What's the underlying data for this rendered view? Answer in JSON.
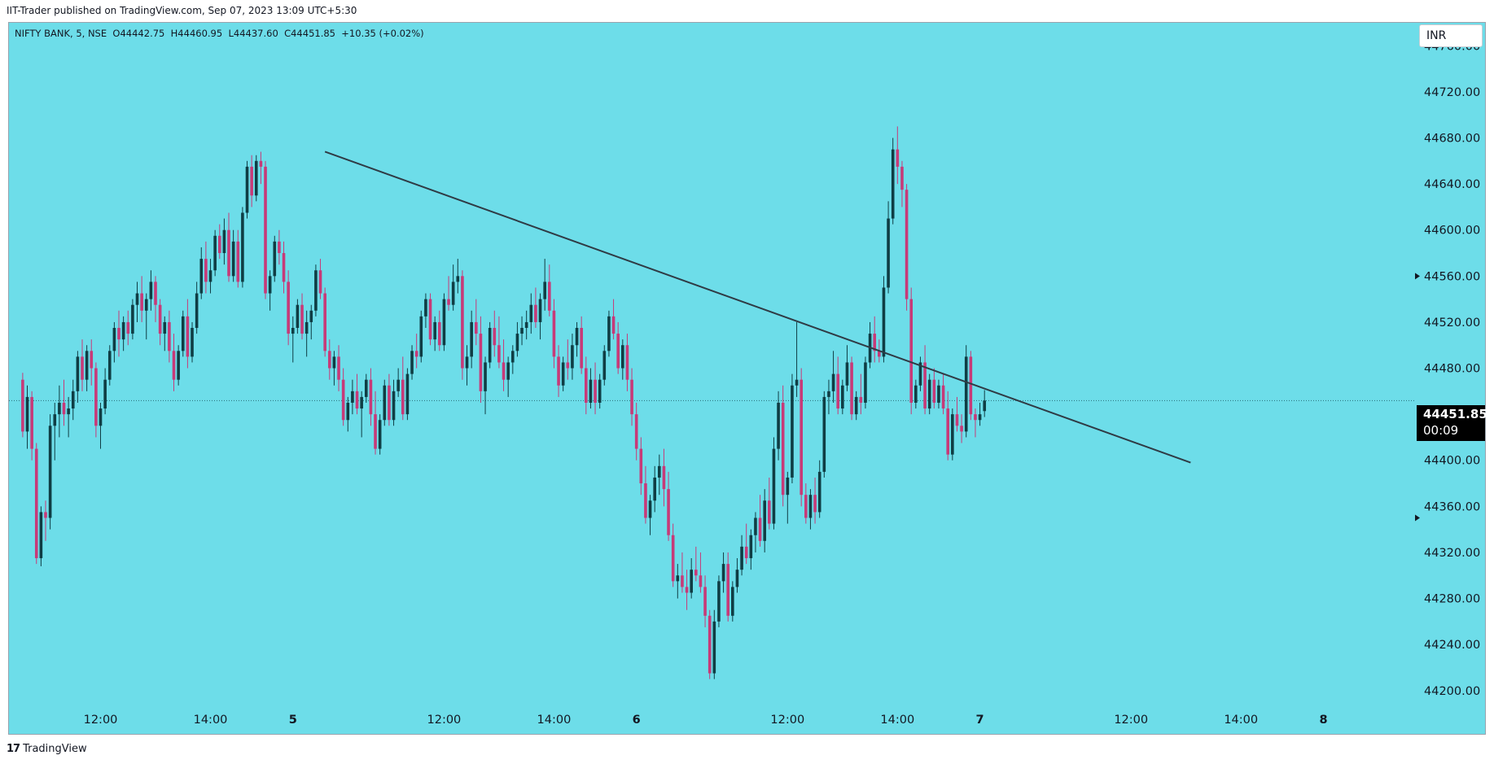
{
  "caption": "IIT-Trader published on TradingView.com, Sep 07, 2023 13:09 UTC+5:30",
  "legend": "NIFTY BANK, 5, NSE  O44442.75  H44460.95  L44437.60  C44451.85  +10.35 (+0.02%)",
  "currency": "INR",
  "last_price": {
    "price": "44451.85",
    "countdown": "00:09",
    "value": 44451.85
  },
  "footer": {
    "logo": "17",
    "brand": "TradingView"
  },
  "colors": {
    "background": "#6ddde9",
    "up": "#0f3d44",
    "down": "#c73a78",
    "trendline": "#2f3b45",
    "tag": "#000000"
  },
  "icons": {
    "price-arrow": "triangle-right",
    "tradingview-logo": "tv-icon"
  },
  "chart_data": {
    "type": "candlestick",
    "symbol": "NIFTY BANK",
    "interval": "5",
    "exchange": "NSE",
    "ohlc_last": {
      "open": 44442.75,
      "high": 44460.95,
      "low": 44437.6,
      "close": 44451.85,
      "change": 10.35,
      "change_pct": "+0.02%"
    },
    "ylim": [
      44185,
      44780
    ],
    "y_ticks": [
      "44760.00",
      "44720.00",
      "44680.00",
      "44640.00",
      "44600.00",
      "44560.00",
      "44520.00",
      "44480.00",
      "44440.00",
      "44400.00",
      "44360.00",
      "44320.00",
      "44280.00",
      "44240.00",
      "44200.00"
    ],
    "x_ticks": [
      {
        "label": "12:00",
        "bold": false,
        "bar": 17
      },
      {
        "label": "14:00",
        "bold": false,
        "bar": 41
      },
      {
        "label": "5",
        "bold": true,
        "bar": 59
      },
      {
        "label": "12:00",
        "bold": false,
        "bar": 92
      },
      {
        "label": "14:00",
        "bold": false,
        "bar": 116
      },
      {
        "label": "6",
        "bold": true,
        "bar": 134
      },
      {
        "label": "12:00",
        "bold": false,
        "bar": 167
      },
      {
        "label": "14:00",
        "bold": false,
        "bar": 191
      },
      {
        "label": "7",
        "bold": true,
        "bar": 209
      },
      {
        "label": "12:00",
        "bold": false,
        "bar": 242
      },
      {
        "label": "14:00",
        "bold": false,
        "bar": 266
      },
      {
        "label": "8",
        "bold": true,
        "bar": 284
      }
    ],
    "x_range_bars": [
      -3,
      304
    ],
    "price_line": 44451.85,
    "trendline": [
      {
        "bar": 66,
        "price": 44668
      },
      {
        "bar": 255,
        "price": 44398
      }
    ],
    "candles": [
      [
        44470,
        44476,
        44420,
        44425
      ],
      [
        44425,
        44465,
        44410,
        44455
      ],
      [
        44455,
        44460,
        44400,
        44410
      ],
      [
        44410,
        44415,
        44310,
        44315
      ],
      [
        44315,
        44360,
        44308,
        44355
      ],
      [
        44355,
        44365,
        44330,
        44350
      ],
      [
        44350,
        44440,
        44340,
        44430
      ],
      [
        44430,
        44450,
        44400,
        44440
      ],
      [
        44440,
        44465,
        44420,
        44450
      ],
      [
        44450,
        44470,
        44430,
        44440
      ],
      [
        44440,
        44455,
        44420,
        44445
      ],
      [
        44445,
        44470,
        44435,
        44460
      ],
      [
        44460,
        44495,
        44450,
        44490
      ],
      [
        44490,
        44505,
        44460,
        44470
      ],
      [
        44470,
        44500,
        44460,
        44495
      ],
      [
        44495,
        44505,
        44465,
        44480
      ],
      [
        44480,
        44485,
        44420,
        44430
      ],
      [
        44430,
        44450,
        44410,
        44445
      ],
      [
        44445,
        44480,
        44440,
        44470
      ],
      [
        44470,
        44500,
        44465,
        44495
      ],
      [
        44495,
        44520,
        44485,
        44515
      ],
      [
        44515,
        44530,
        44490,
        44505
      ],
      [
        44505,
        44525,
        44495,
        44520
      ],
      [
        44520,
        44530,
        44500,
        44510
      ],
      [
        44510,
        44540,
        44505,
        44535
      ],
      [
        44535,
        44555,
        44520,
        44545
      ],
      [
        44545,
        44560,
        44520,
        44530
      ],
      [
        44530,
        44545,
        44505,
        44540
      ],
      [
        44540,
        44565,
        44530,
        44555
      ],
      [
        44555,
        44560,
        44520,
        44535
      ],
      [
        44535,
        44540,
        44500,
        44510
      ],
      [
        44510,
        44525,
        44495,
        44520
      ],
      [
        44520,
        44530,
        44485,
        44495
      ],
      [
        44495,
        44510,
        44460,
        44470
      ],
      [
        44470,
        44500,
        44465,
        44495
      ],
      [
        44495,
        44530,
        44490,
        44525
      ],
      [
        44525,
        44540,
        44480,
        44490
      ],
      [
        44490,
        44520,
        44485,
        44515
      ],
      [
        44515,
        44555,
        44510,
        44545
      ],
      [
        44545,
        44585,
        44540,
        44575
      ],
      [
        44575,
        44590,
        44545,
        44555
      ],
      [
        44555,
        44575,
        44545,
        44565
      ],
      [
        44565,
        44600,
        44560,
        44595
      ],
      [
        44595,
        44605,
        44575,
        44580
      ],
      [
        44580,
        44610,
        44570,
        44600
      ],
      [
        44600,
        44615,
        44555,
        44560
      ],
      [
        44560,
        44600,
        44555,
        44590
      ],
      [
        44590,
        44600,
        44550,
        44555
      ],
      [
        44555,
        44620,
        44550,
        44615
      ],
      [
        44615,
        44660,
        44610,
        44655
      ],
      [
        44655,
        44665,
        44620,
        44630
      ],
      [
        44630,
        44665,
        44625,
        44660
      ],
      [
        44660,
        44668,
        44640,
        44655
      ],
      [
        44655,
        44660,
        44540,
        44545
      ],
      [
        44545,
        44565,
        44530,
        44560
      ],
      [
        44560,
        44595,
        44555,
        44590
      ],
      [
        44590,
        44600,
        44570,
        44580
      ],
      [
        44580,
        44590,
        44545,
        44555
      ],
      [
        44555,
        44565,
        44500,
        44510
      ],
      [
        44510,
        44525,
        44485,
        44515
      ],
      [
        44515,
        44540,
        44510,
        44535
      ],
      [
        44535,
        44545,
        44505,
        44510
      ],
      [
        44510,
        44530,
        44490,
        44520
      ],
      [
        44520,
        44535,
        44505,
        44530
      ],
      [
        44530,
        44570,
        44525,
        44565
      ],
      [
        44565,
        44575,
        44540,
        44545
      ],
      [
        44545,
        44550,
        44490,
        44495
      ],
      [
        44495,
        44505,
        44470,
        44480
      ],
      [
        44480,
        44495,
        44465,
        44490
      ],
      [
        44490,
        44500,
        44460,
        44470
      ],
      [
        44470,
        44480,
        44430,
        44435
      ],
      [
        44435,
        44455,
        44425,
        44450
      ],
      [
        44450,
        44470,
        44440,
        44460
      ],
      [
        44460,
        44475,
        44440,
        44445
      ],
      [
        44445,
        44460,
        44420,
        44455
      ],
      [
        44455,
        44475,
        44450,
        44470
      ],
      [
        44470,
        44480,
        44430,
        44440
      ],
      [
        44440,
        44460,
        44405,
        44410
      ],
      [
        44410,
        44440,
        44405,
        44435
      ],
      [
        44435,
        44470,
        44430,
        44465
      ],
      [
        44465,
        44475,
        44430,
        44435
      ],
      [
        44435,
        44470,
        44430,
        44460
      ],
      [
        44460,
        44480,
        44455,
        44470
      ],
      [
        44470,
        44490,
        44435,
        44440
      ],
      [
        44440,
        44480,
        44435,
        44475
      ],
      [
        44475,
        44500,
        44470,
        44495
      ],
      [
        44495,
        44510,
        44480,
        44490
      ],
      [
        44490,
        44530,
        44485,
        44525
      ],
      [
        44525,
        44545,
        44515,
        44540
      ],
      [
        44540,
        44545,
        44500,
        44505
      ],
      [
        44505,
        44525,
        44495,
        44520
      ],
      [
        44520,
        44530,
        44495,
        44500
      ],
      [
        44500,
        44545,
        44495,
        44540
      ],
      [
        44540,
        44560,
        44530,
        44535
      ],
      [
        44535,
        44570,
        44530,
        44555
      ],
      [
        44555,
        44575,
        44545,
        44560
      ],
      [
        44560,
        44565,
        44470,
        44480
      ],
      [
        44480,
        44500,
        44465,
        44490
      ],
      [
        44490,
        44530,
        44480,
        44520
      ],
      [
        44520,
        44540,
        44500,
        44510
      ],
      [
        44510,
        44525,
        44450,
        44460
      ],
      [
        44460,
        44490,
        44440,
        44485
      ],
      [
        44485,
        44520,
        44480,
        44515
      ],
      [
        44515,
        44530,
        44490,
        44500
      ],
      [
        44500,
        44525,
        44480,
        44485
      ],
      [
        44485,
        44505,
        44460,
        44470
      ],
      [
        44470,
        44490,
        44455,
        44485
      ],
      [
        44485,
        44500,
        44475,
        44495
      ],
      [
        44495,
        44520,
        44490,
        44510
      ],
      [
        44510,
        44525,
        44500,
        44515
      ],
      [
        44515,
        44530,
        44505,
        44520
      ],
      [
        44520,
        44545,
        44510,
        44535
      ],
      [
        44535,
        44550,
        44515,
        44520
      ],
      [
        44520,
        44545,
        44505,
        44540
      ],
      [
        44540,
        44575,
        44530,
        44555
      ],
      [
        44555,
        44570,
        44525,
        44530
      ],
      [
        44530,
        44540,
        44480,
        44490
      ],
      [
        44490,
        44500,
        44455,
        44465
      ],
      [
        44465,
        44490,
        44460,
        44485
      ],
      [
        44485,
        44505,
        44470,
        44480
      ],
      [
        44480,
        44510,
        44470,
        44500
      ],
      [
        44500,
        44520,
        44490,
        44515
      ],
      [
        44515,
        44525,
        44475,
        44480
      ],
      [
        44480,
        44490,
        44440,
        44450
      ],
      [
        44450,
        44480,
        44445,
        44470
      ],
      [
        44470,
        44485,
        44440,
        44450
      ],
      [
        44450,
        44475,
        44445,
        44470
      ],
      [
        44470,
        44500,
        44465,
        44495
      ],
      [
        44495,
        44530,
        44490,
        44525
      ],
      [
        44525,
        44540,
        44505,
        44510
      ],
      [
        44510,
        44520,
        44475,
        44480
      ],
      [
        44480,
        44505,
        44470,
        44500
      ],
      [
        44500,
        44510,
        44460,
        44470
      ],
      [
        44470,
        44480,
        44430,
        44440
      ],
      [
        44440,
        44450,
        44400,
        44410
      ],
      [
        44410,
        44420,
        44370,
        44380
      ],
      [
        44380,
        44395,
        44345,
        44350
      ],
      [
        44350,
        44370,
        44335,
        44365
      ],
      [
        44365,
        44395,
        44355,
        44385
      ],
      [
        44385,
        44405,
        44370,
        44395
      ],
      [
        44395,
        44410,
        44360,
        44375
      ],
      [
        44375,
        44390,
        44330,
        44335
      ],
      [
        44335,
        44345,
        44290,
        44295
      ],
      [
        44295,
        44310,
        44280,
        44300
      ],
      [
        44300,
        44320,
        44285,
        44290
      ],
      [
        44290,
        44305,
        44270,
        44285
      ],
      [
        44285,
        44315,
        44280,
        44305
      ],
      [
        44305,
        44325,
        44295,
        44300
      ],
      [
        44300,
        44320,
        44285,
        44290
      ],
      [
        44290,
        44300,
        44255,
        44265
      ],
      [
        44265,
        44270,
        44210,
        44215
      ],
      [
        44215,
        44270,
        44210,
        44260
      ],
      [
        44260,
        44300,
        44255,
        44295
      ],
      [
        44295,
        44320,
        44285,
        44310
      ],
      [
        44310,
        44320,
        44260,
        44265
      ],
      [
        44265,
        44295,
        44260,
        44290
      ],
      [
        44290,
        44315,
        44285,
        44305
      ],
      [
        44305,
        44335,
        44300,
        44325
      ],
      [
        44325,
        44345,
        44310,
        44315
      ],
      [
        44315,
        44340,
        44305,
        44335
      ],
      [
        44335,
        44355,
        44320,
        44350
      ],
      [
        44350,
        44370,
        44325,
        44330
      ],
      [
        44330,
        44375,
        44320,
        44365
      ],
      [
        44365,
        44385,
        44340,
        44345
      ],
      [
        44345,
        44420,
        44340,
        44410
      ],
      [
        44410,
        44460,
        44400,
        44450
      ],
      [
        44450,
        44465,
        44360,
        44370
      ],
      [
        44370,
        44390,
        44345,
        44385
      ],
      [
        44385,
        44475,
        44380,
        44465
      ],
      [
        44465,
        44520,
        44455,
        44470
      ],
      [
        44470,
        44480,
        44360,
        44370
      ],
      [
        44370,
        44380,
        44345,
        44350
      ],
      [
        44350,
        44375,
        44340,
        44370
      ],
      [
        44370,
        44385,
        44345,
        44355
      ],
      [
        44355,
        44400,
        44350,
        44390
      ],
      [
        44390,
        44460,
        44385,
        44455
      ],
      [
        44455,
        44470,
        44440,
        44460
      ],
      [
        44460,
        44495,
        44450,
        44475
      ],
      [
        44475,
        44490,
        44440,
        44445
      ],
      [
        44445,
        44470,
        44440,
        44465
      ],
      [
        44465,
        44500,
        44460,
        44485
      ],
      [
        44485,
        44490,
        44435,
        44440
      ],
      [
        44440,
        44460,
        44435,
        44455
      ],
      [
        44455,
        44475,
        44440,
        44450
      ],
      [
        44450,
        44490,
        44445,
        44485
      ],
      [
        44485,
        44520,
        44480,
        44510
      ],
      [
        44510,
        44525,
        44485,
        44495
      ],
      [
        44495,
        44505,
        44485,
        44490
      ],
      [
        44490,
        44560,
        44485,
        44550
      ],
      [
        44550,
        44625,
        44545,
        44610
      ],
      [
        44610,
        44680,
        44605,
        44670
      ],
      [
        44670,
        44690,
        44640,
        44655
      ],
      [
        44655,
        44660,
        44620,
        44635
      ],
      [
        44635,
        44640,
        44530,
        44540
      ],
      [
        44540,
        44550,
        44440,
        44450
      ],
      [
        44450,
        44470,
        44445,
        44465
      ],
      [
        44465,
        44490,
        44460,
        44485
      ],
      [
        44485,
        44500,
        44440,
        44445
      ],
      [
        44445,
        44475,
        44440,
        44470
      ],
      [
        44470,
        44480,
        44445,
        44450
      ],
      [
        44450,
        44470,
        44445,
        44465
      ],
      [
        44465,
        44475,
        44440,
        44445
      ],
      [
        44445,
        44460,
        44400,
        44405
      ],
      [
        44405,
        44445,
        44400,
        44440
      ],
      [
        44440,
        44455,
        44425,
        44430
      ],
      [
        44430,
        44440,
        44415,
        44425
      ],
      [
        44425,
        44500,
        44420,
        44490
      ],
      [
        44490,
        44495,
        44435,
        44440
      ],
      [
        44440,
        44445,
        44420,
        44435
      ],
      [
        44435,
        44450,
        44430,
        44440
      ],
      [
        44442.75,
        44460.95,
        44437.6,
        44451.85
      ]
    ]
  }
}
